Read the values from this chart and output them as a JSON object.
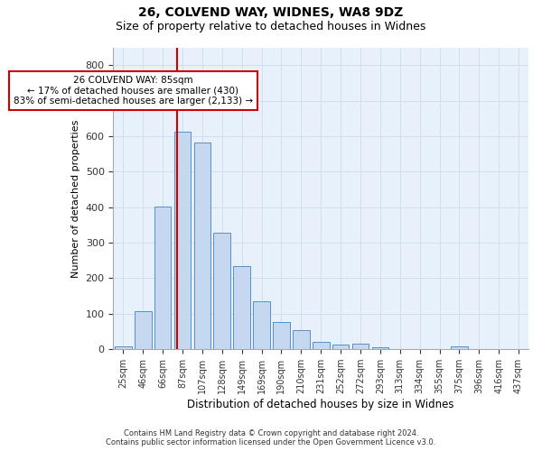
{
  "title1": "26, COLVEND WAY, WIDNES, WA8 9DZ",
  "title2": "Size of property relative to detached houses in Widnes",
  "xlabel": "Distribution of detached houses by size in Widnes",
  "ylabel": "Number of detached properties",
  "categories": [
    "25sqm",
    "46sqm",
    "66sqm",
    "87sqm",
    "107sqm",
    "128sqm",
    "149sqm",
    "169sqm",
    "190sqm",
    "210sqm",
    "231sqm",
    "252sqm",
    "272sqm",
    "293sqm",
    "313sqm",
    "334sqm",
    "355sqm",
    "375sqm",
    "396sqm",
    "416sqm",
    "437sqm"
  ],
  "bar_heights": [
    7,
    107,
    403,
    612,
    583,
    327,
    235,
    135,
    78,
    53,
    22,
    12,
    17,
    5,
    0,
    0,
    0,
    7,
    0,
    0,
    0
  ],
  "bar_color": "#c5d8f0",
  "bar_edge_color": "#5590c8",
  "vline_index": 2.72,
  "vline_color": "#cc0000",
  "annotation_text": "26 COLVEND WAY: 85sqm\n← 17% of detached houses are smaller (430)\n83% of semi-detached houses are larger (2,133) →",
  "annotation_box_color": "#ffffff",
  "annotation_box_edge_color": "#cc0000",
  "ylim_max": 850,
  "yticks": [
    0,
    100,
    200,
    300,
    400,
    500,
    600,
    700,
    800
  ],
  "footer": "Contains HM Land Registry data © Crown copyright and database right 2024.\nContains public sector information licensed under the Open Government Licence v3.0.",
  "grid_color": "#d0dff0",
  "background_color": "#e8f0fb",
  "title_fontsize": 10,
  "subtitle_fontsize": 9,
  "ylabel_fontsize": 8,
  "xlabel_fontsize": 8.5,
  "tick_fontsize": 7,
  "footer_fontsize": 6,
  "annotation_fontsize": 7.5
}
